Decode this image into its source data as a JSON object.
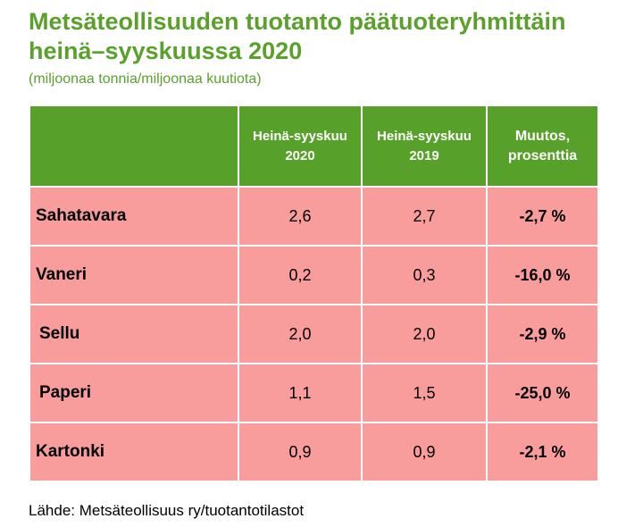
{
  "title_line1": "Metsäteollisuuden tuotanto päätuoteryhmittäin",
  "title_line2": "heinä–syyskuussa 2020",
  "subtitle": "(miljoonaa tonnia/miljoonaa kuutiota)",
  "table": {
    "headers": {
      "col0": "",
      "col1_line1": "Heinä-syyskuu",
      "col1_line2": "2020",
      "col2_line1": "Heinä-syyskuu",
      "col2_line2": "2019",
      "col3_line1": "Muutos,",
      "col3_line2": "prosenttia"
    },
    "rows": [
      {
        "label": "Sahatavara",
        "v2020": "2,6",
        "v2019": "2,7",
        "change": "-2,7 %"
      },
      {
        "label": "Vaneri",
        "v2020": "0,2",
        "v2019": "0,3",
        "change": "-16,0 %"
      },
      {
        "label": "Sellu",
        "v2020": "2,0",
        "v2019": "2,0",
        "change": "-2,9 %"
      },
      {
        "label": "Paperi",
        "v2020": "1,1",
        "v2019": "1,5",
        "change": "-25,0 %"
      },
      {
        "label": "Kartonki",
        "v2020": "0,9",
        "v2019": "0,9",
        "change": "-2,1 %"
      }
    ]
  },
  "source": "Lähde: Metsäteollisuus ry/tuotantotilastot",
  "colors": {
    "title": "#5aa12c",
    "header_bg": "#57a12a",
    "row_bg": "#f89c9c"
  }
}
